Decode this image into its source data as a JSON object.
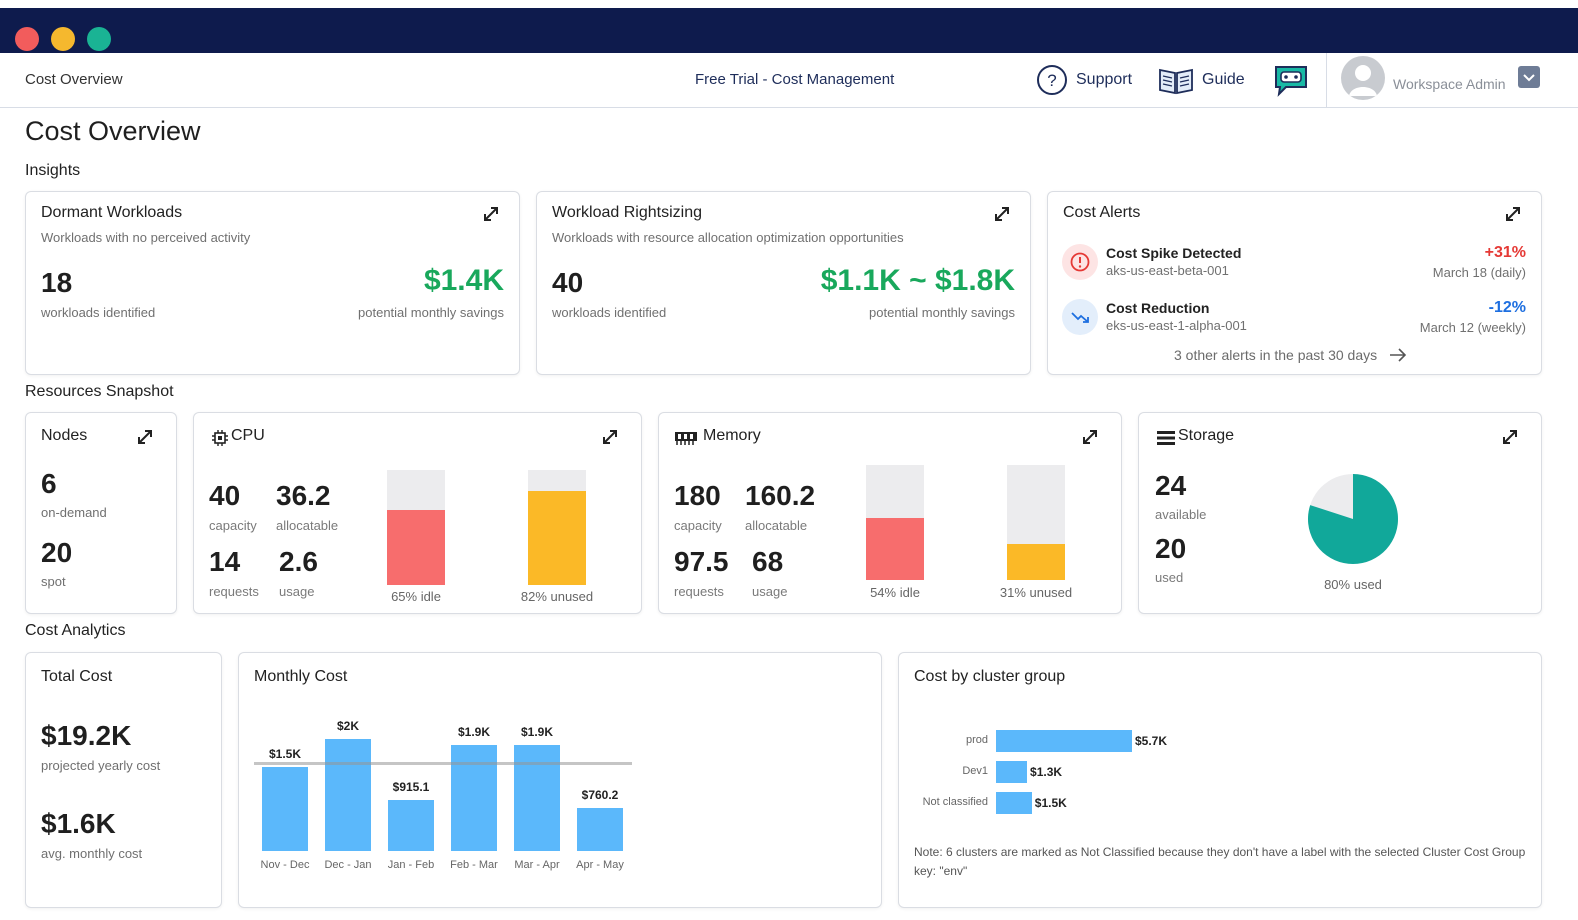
{
  "window": {
    "dots": [
      "#f25c5c",
      "#f5b82e",
      "#1ab394"
    ]
  },
  "nav": {
    "breadcrumb": "Cost Overview",
    "plan": "Free Trial - Cost Management",
    "support": "Support",
    "guide": "Guide",
    "user": "Workspace Admin"
  },
  "page": {
    "title": "Cost Overview",
    "insights_heading": "Insights",
    "resources_heading": "Resources Snapshot",
    "analytics_heading": "Cost Analytics"
  },
  "dormant": {
    "title": "Dormant Workloads",
    "subtitle": "Workloads with no perceived activity",
    "count": "18",
    "count_label": "workloads identified",
    "savings": "$1.4K",
    "savings_label": "potential monthly savings"
  },
  "rightsizing": {
    "title": "Workload Rightsizing",
    "subtitle": "Workloads with resource allocation optimization opportunities",
    "count": "40",
    "count_label": "workloads identified",
    "savings": "$1.1K ~ $1.8K",
    "savings_label": "potential monthly savings"
  },
  "alerts": {
    "title": "Cost Alerts",
    "items": [
      {
        "name": "Cost Spike Detected",
        "cluster": "aks-us-east-beta-001",
        "change": "+31%",
        "date": "March 18 (daily)",
        "color": "#e53935"
      },
      {
        "name": "Cost Reduction",
        "cluster": "eks-us-east-1-alpha-001",
        "change": "-12%",
        "date": "March 12 (weekly)",
        "color": "#1e6fe0"
      }
    ],
    "more": "3 other alerts in the past 30 days"
  },
  "nodes": {
    "title": "Nodes",
    "on_demand": "6",
    "on_demand_label": "on-demand",
    "spot": "20",
    "spot_label": "spot"
  },
  "cpu": {
    "title": "CPU",
    "capacity": "40",
    "capacity_label": "capacity",
    "allocatable": "36.2",
    "allocatable_label": "allocatable",
    "requests": "14",
    "requests_label": "requests",
    "usage": "2.6",
    "usage_label": "usage",
    "idle_label": "65% idle",
    "idle_pct": 65,
    "unused_label": "82% unused",
    "unused_pct": 82
  },
  "memory": {
    "title": "Memory",
    "capacity": "180",
    "capacity_label": "capacity",
    "allocatable": "160.2",
    "allocatable_label": "allocatable",
    "requests": "97.5",
    "requests_label": "requests",
    "usage": "68",
    "usage_label": "usage",
    "idle_label": "54% idle",
    "idle_pct": 54,
    "unused_label": "31% unused",
    "unused_pct": 31
  },
  "storage": {
    "title": "Storage",
    "available": "24",
    "available_label": "available",
    "used": "20",
    "used_label": "used",
    "used_pct_label": "80% used",
    "used_pct": 80
  },
  "total_cost": {
    "title": "Total Cost",
    "yearly": "$19.2K",
    "yearly_label": "projected yearly cost",
    "monthly": "$1.6K",
    "monthly_label": "avg. monthly cost"
  },
  "monthly_cost": {
    "title": "Monthly Cost"
  },
  "cluster_cost": {
    "title": "Cost by cluster group",
    "note": "Note: 6 clusters are marked as Not Classified because they don't have a label with the selected Cluster Cost Group key: \"env\""
  },
  "chart_data": [
    {
      "type": "bar",
      "title": "Monthly Cost",
      "categories": [
        "Nov - Dec",
        "Dec - Jan",
        "Jan - Feb",
        "Feb - Mar",
        "Mar - Apr",
        "Apr - May"
      ],
      "values": [
        1500,
        2000,
        915.1,
        1900,
        1900,
        760.2
      ],
      "labels": [
        "$1.5K",
        "$2K",
        "$915.1",
        "$1.9K",
        "$1.9K",
        "$760.2"
      ],
      "average": 1600,
      "ylim": [
        0,
        2200
      ],
      "color": "#5bb8fb"
    },
    {
      "type": "bar",
      "orientation": "horizontal",
      "title": "Cost by cluster group",
      "categories": [
        "prod",
        "Dev1",
        "Not classified"
      ],
      "values": [
        5700,
        1300,
        1500
      ],
      "labels": [
        "$5.7K",
        "$1.3K",
        "$1.5K"
      ],
      "xlim": [
        0,
        5700
      ],
      "color": "#5bb8fb"
    }
  ]
}
